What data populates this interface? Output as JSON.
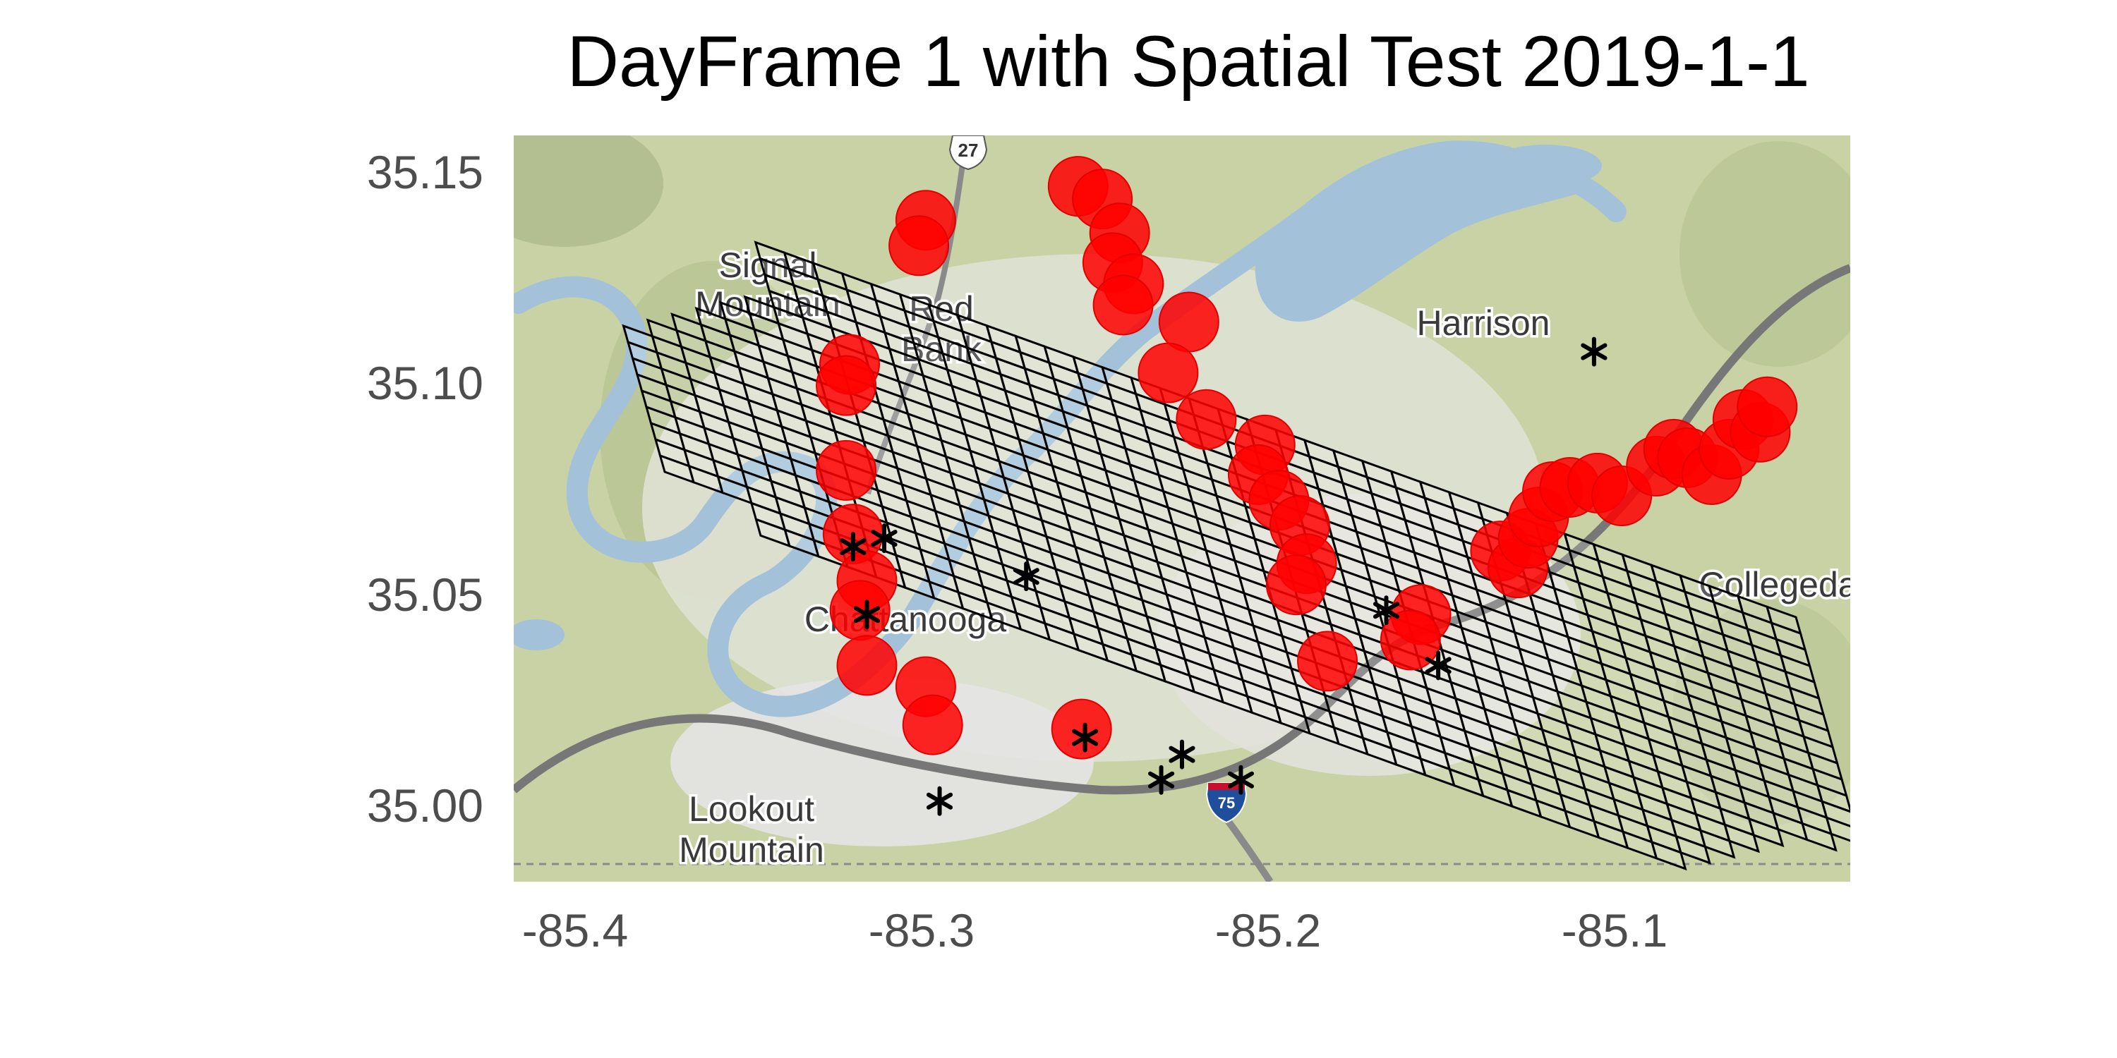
{
  "title": "DayFrame 1 with Spatial Test 2019-1-1",
  "colors": {
    "hotspot": "#ff0000",
    "hotspot_edge": "#e00000",
    "grid": "#000000",
    "incident": "#000000",
    "water": "#a3c2d9",
    "terrain": "#c9d2a5",
    "urban": "#e6e6e6",
    "road": "#777777"
  },
  "axes": {
    "x_ticks": [
      "-85.4",
      "-85.3",
      "-85.2",
      "-85.1"
    ],
    "y_ticks": [
      "35.15",
      "35.10",
      "35.05",
      "35.00"
    ]
  },
  "map_labels": [
    {
      "text": "Signal Mountain",
      "lines": [
        "Signal",
        "Mountain"
      ]
    },
    {
      "text": "Red Bank",
      "lines": [
        "Red",
        "Bank"
      ]
    },
    {
      "text": "Harrison",
      "lines": [
        "Harrison"
      ]
    },
    {
      "text": "Chattanooga",
      "lines": [
        "Chattanooga"
      ]
    },
    {
      "text": "Collegedale",
      "lines": [
        "Collegeda"
      ]
    },
    {
      "text": "Lookout Mountain",
      "lines": [
        "Lookout",
        "Mountain"
      ]
    }
  ],
  "road_shields": [
    {
      "text": "27",
      "icon": "us-highway-shield-icon"
    },
    {
      "text": "75",
      "icon": "interstate-shield-icon"
    }
  ],
  "chart_data": {
    "type": "scatter",
    "title": "DayFrame 1 with Spatial Test 2019-1-1",
    "xlabel": "",
    "ylabel": "",
    "xlim": [
      -85.418,
      -85.032
    ],
    "ylim": [
      34.982,
      35.158
    ],
    "grid": false,
    "legend": "none",
    "basemap": "terrain",
    "series": [
      {
        "marker": "circle",
        "points": [
          [
            -85.299,
            35.138
          ],
          [
            -85.301,
            35.132
          ],
          [
            -85.321,
            35.104
          ],
          [
            -85.322,
            35.099
          ],
          [
            -85.322,
            35.079
          ],
          [
            -85.32,
            35.064
          ],
          [
            -85.316,
            35.053
          ],
          [
            -85.318,
            35.046
          ],
          [
            -85.316,
            35.033
          ],
          [
            -85.299,
            35.028
          ],
          [
            -85.297,
            35.019
          ],
          [
            -85.254,
            35.018
          ],
          [
            -85.255,
            35.146
          ],
          [
            -85.248,
            35.143
          ],
          [
            -85.243,
            35.135
          ],
          [
            -85.245,
            35.128
          ],
          [
            -85.239,
            35.123
          ],
          [
            -85.242,
            35.118
          ],
          [
            -85.223,
            35.114
          ],
          [
            -85.229,
            35.102
          ],
          [
            -85.218,
            35.091
          ],
          [
            -85.201,
            35.085
          ],
          [
            -85.203,
            35.078
          ],
          [
            -85.197,
            35.072
          ],
          [
            -85.191,
            35.066
          ],
          [
            -85.189,
            35.057
          ],
          [
            -85.192,
            35.052
          ],
          [
            -85.183,
            35.034
          ],
          [
            -85.156,
            35.045
          ],
          [
            -85.159,
            35.039
          ],
          [
            -85.133,
            35.06
          ],
          [
            -85.128,
            35.056
          ],
          [
            -85.125,
            35.063
          ],
          [
            -85.122,
            35.068
          ],
          [
            -85.118,
            35.074
          ],
          [
            -85.113,
            35.075
          ],
          [
            -85.105,
            35.076
          ],
          [
            -85.098,
            35.073
          ],
          [
            -85.088,
            35.08
          ],
          [
            -85.083,
            35.084
          ],
          [
            -85.079,
            35.082
          ],
          [
            -85.072,
            35.078
          ],
          [
            -85.067,
            35.084
          ],
          [
            -85.063,
            35.091
          ],
          [
            -85.058,
            35.088
          ],
          [
            -85.056,
            35.094
          ]
        ]
      },
      {
        "marker": "asterisk",
        "points": [
          [
            -85.32,
            35.061
          ],
          [
            -85.311,
            35.063
          ],
          [
            -85.316,
            35.045
          ],
          [
            -85.27,
            35.054
          ],
          [
            -85.295,
            35.001
          ],
          [
            -85.253,
            35.016
          ],
          [
            -85.231,
            35.006
          ],
          [
            -85.225,
            35.012
          ],
          [
            -85.208,
            35.006
          ],
          [
            -85.166,
            35.046
          ],
          [
            -85.151,
            35.033
          ],
          [
            -85.106,
            35.107
          ]
        ]
      }
    ],
    "grid_cells": {
      "rows": 20,
      "columns": 42
    }
  }
}
